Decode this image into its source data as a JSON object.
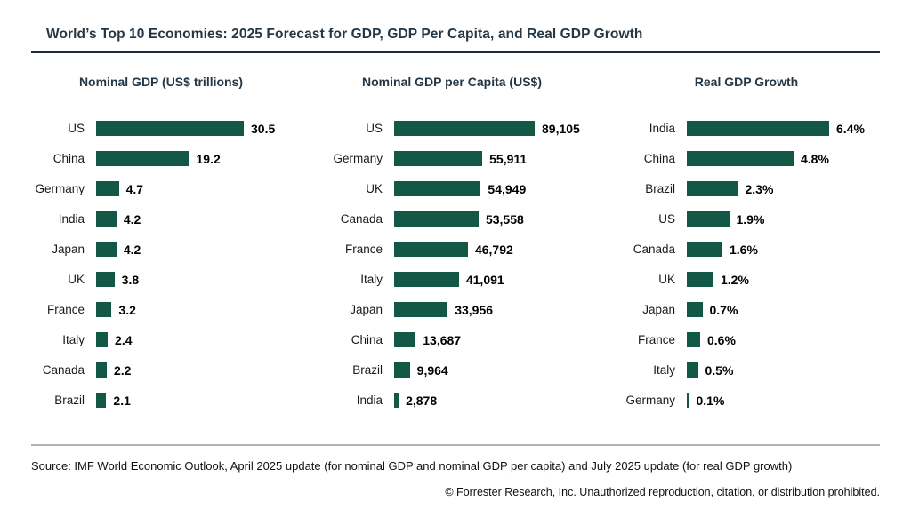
{
  "header": {
    "title": "World’s Top 10 Economies: 2025 Forecast for GDP, GDP Per Capita, and Real GDP Growth"
  },
  "colors": {
    "bar_green": "#135847",
    "title_navy": "#243746"
  },
  "chart_data": [
    {
      "type": "bar",
      "orientation": "horizontal",
      "title": "Nominal GDP (US$ trillions)",
      "categories": [
        "US",
        "China",
        "Germany",
        "India",
        "Japan",
        "UK",
        "France",
        "Italy",
        "Canada",
        "Brazil"
      ],
      "values": [
        30.5,
        19.2,
        4.7,
        4.2,
        4.2,
        3.8,
        3.2,
        2.4,
        2.2,
        2.1
      ],
      "value_labels": [
        "30.5",
        "19.2",
        "4.7",
        "4.2",
        "4.2",
        "3.8",
        "3.2",
        "2.4",
        "2.2",
        "2.1"
      ],
      "xlim": [
        0,
        30.5
      ],
      "grid": false,
      "legend": "none"
    },
    {
      "type": "bar",
      "orientation": "horizontal",
      "title": "Nominal GDP per Capita (US$)",
      "categories": [
        "US",
        "Germany",
        "UK",
        "Canada",
        "France",
        "Italy",
        "Japan",
        "China",
        "Brazil",
        "India"
      ],
      "values": [
        89105,
        55911,
        54949,
        53558,
        46792,
        41091,
        33956,
        13687,
        9964,
        2878
      ],
      "value_labels": [
        "89,105",
        "55,911",
        "54,949",
        "53,558",
        "46,792",
        "41,091",
        "33,956",
        "13,687",
        "9,964",
        "2,878"
      ],
      "xlim": [
        0,
        89105
      ],
      "grid": false,
      "legend": "none"
    },
    {
      "type": "bar",
      "orientation": "horizontal",
      "title": "Real GDP Growth",
      "categories": [
        "India",
        "China",
        "Brazil",
        "US",
        "Canada",
        "UK",
        "Japan",
        "France",
        "Italy",
        "Germany"
      ],
      "values": [
        6.4,
        4.8,
        2.3,
        1.9,
        1.6,
        1.2,
        0.7,
        0.6,
        0.5,
        0.1
      ],
      "value_labels": [
        "6.4%",
        "4.8%",
        "2.3%",
        "1.9%",
        "1.6%",
        "1.2%",
        "0.7%",
        "0.6%",
        "0.5%",
        "0.1%"
      ],
      "xlim": [
        0,
        6.4
      ],
      "grid": false,
      "legend": "none"
    }
  ],
  "footer": {
    "source": "Source: IMF World Economic Outlook, April 2025 update (for nominal GDP and nominal GDP per capita) and July 2025 update (for real GDP growth)",
    "copyright": "© Forrester Research, Inc. Unauthorized reproduction, citation, or distribution prohibited."
  }
}
